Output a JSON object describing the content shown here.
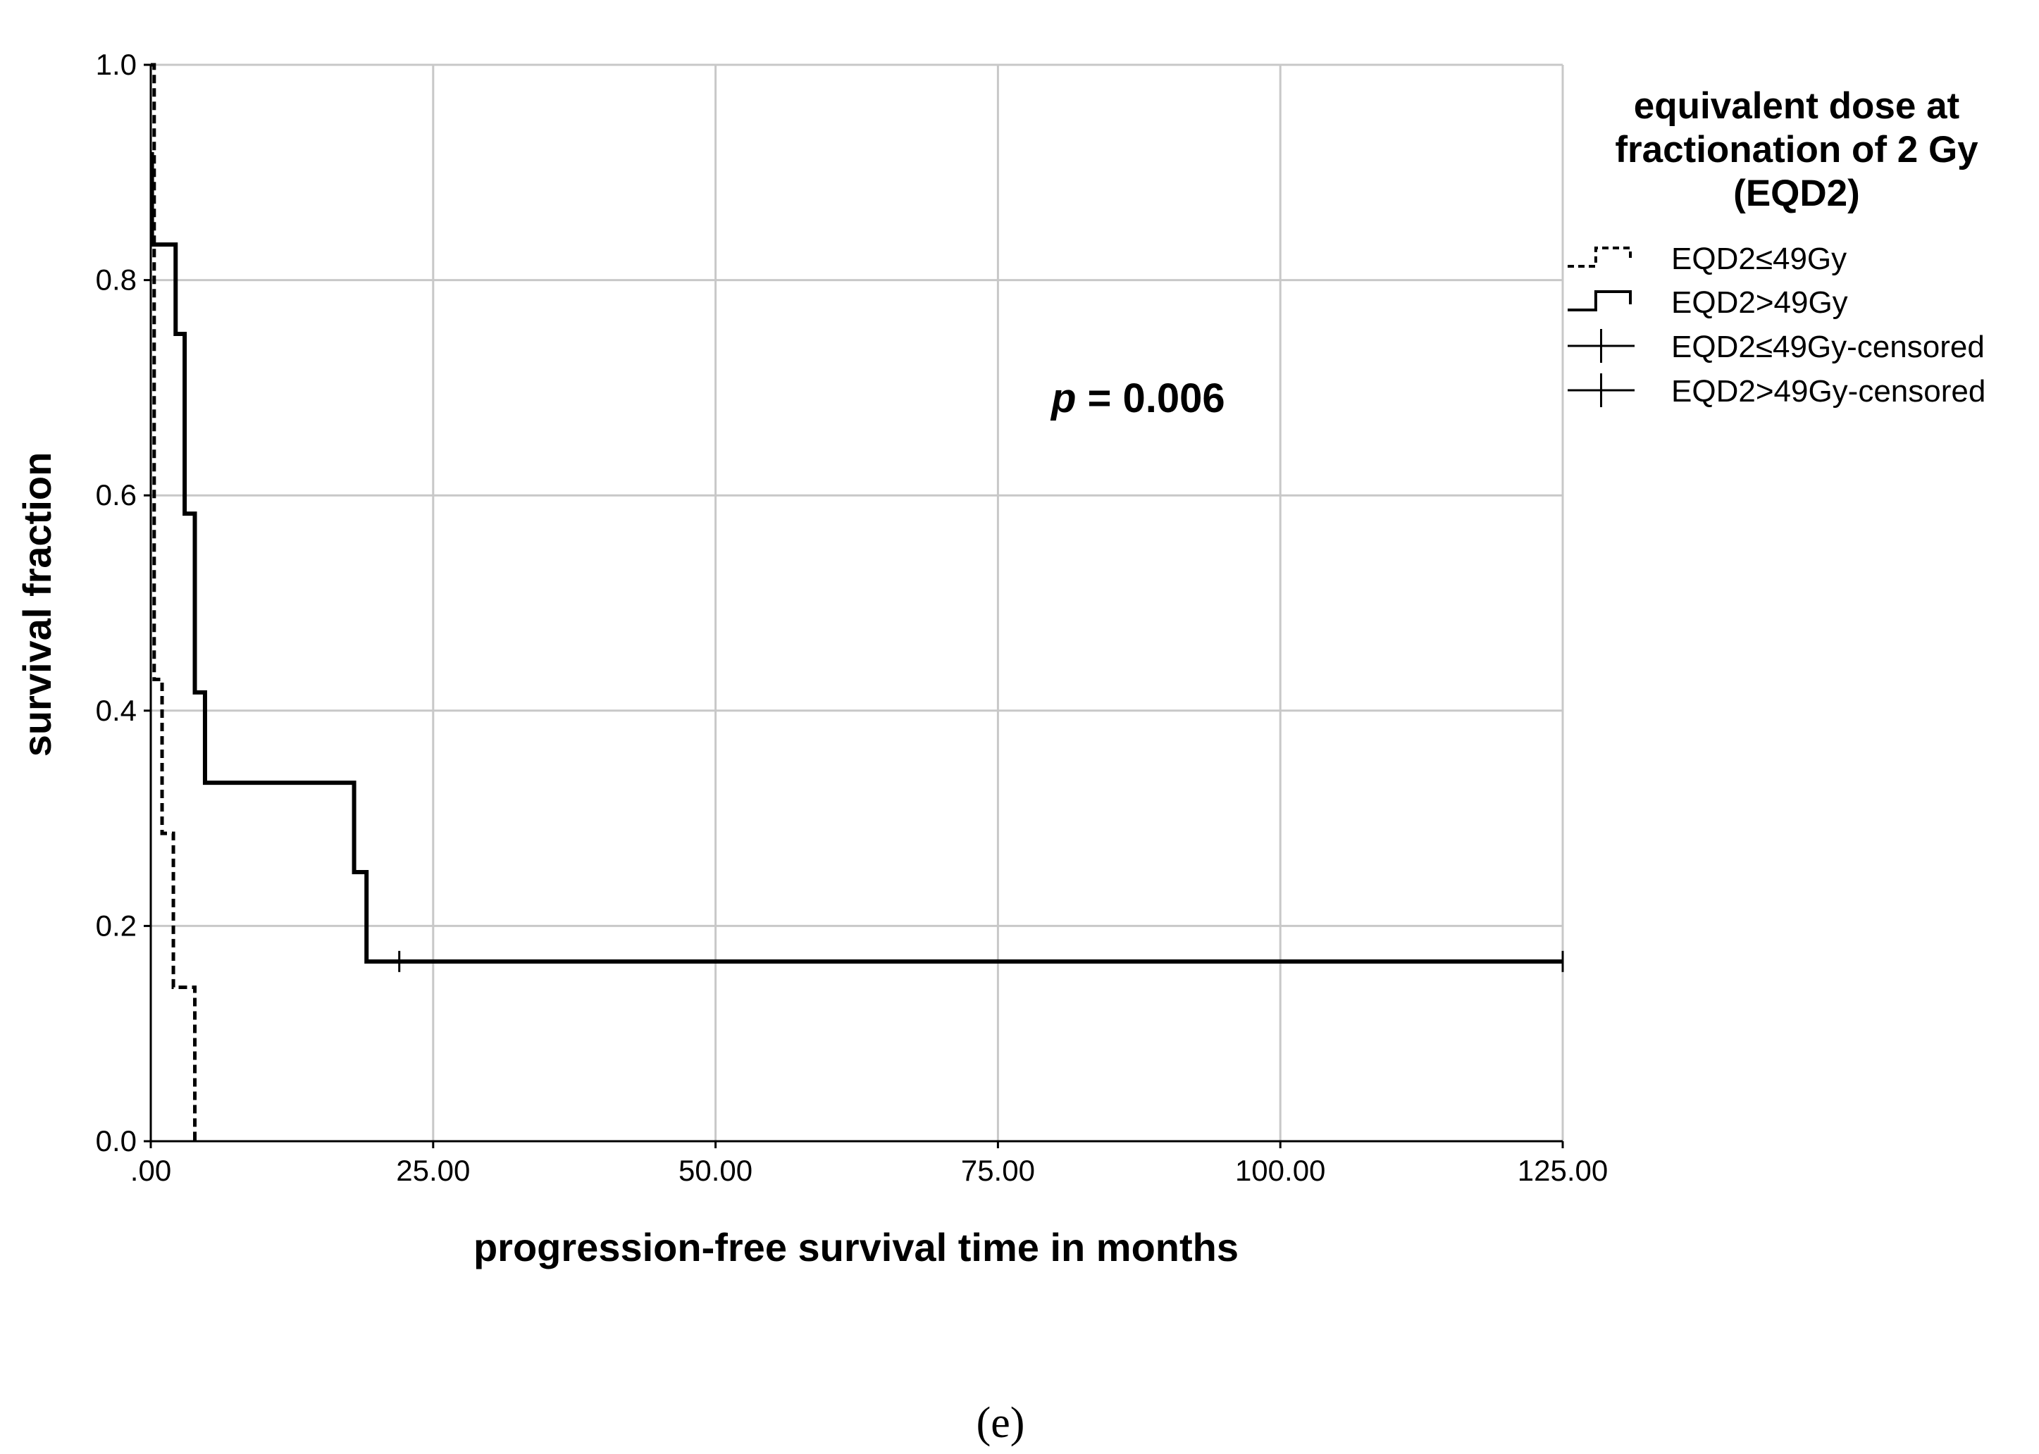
{
  "chart_data": {
    "type": "line",
    "subtype": "kaplan-meier step curve",
    "xlabel": "progression-free survival time in months",
    "ylabel": "survival fraction",
    "xlim": [
      0,
      125
    ],
    "ylim": [
      0,
      1
    ],
    "x_ticks": [
      0,
      25,
      50,
      75,
      100,
      125
    ],
    "x_tick_labels": [
      ".00",
      "25.00",
      "50.00",
      "75.00",
      "100.00",
      "125.00"
    ],
    "y_ticks": [
      0,
      0.2,
      0.4,
      0.6,
      0.8,
      1.0
    ],
    "y_tick_labels": [
      "0.0",
      "0.2",
      "0.4",
      "0.6",
      "0.8",
      "1.0"
    ],
    "grid": true,
    "legend": {
      "title_lines": [
        "equivalent dose at",
        "fractionation of 2 Gy",
        "(EQD2)"
      ],
      "placement": "right",
      "entries": [
        {
          "label": "EQD2≤49Gy",
          "style": "dashed-step"
        },
        {
          "label": "EQD2>49Gy",
          "style": "solid-step"
        },
        {
          "label": "EQD2≤49Gy-censored",
          "style": "cross"
        },
        {
          "label": "EQD2>49Gy-censored",
          "style": "cross"
        }
      ]
    },
    "annotation": {
      "italic": "p",
      "rest": " = 0.006"
    },
    "series": [
      {
        "name": "EQD2≤49Gy",
        "line_style": "dashed",
        "steps": [
          {
            "x": 0,
            "y": 1.0
          },
          {
            "x": 0.3,
            "y": 0.429
          },
          {
            "x": 1.0,
            "y": 0.286
          },
          {
            "x": 2.0,
            "y": 0.143
          },
          {
            "x": 3.9,
            "y": 0.0
          }
        ],
        "end_x": 3.9,
        "censored": []
      },
      {
        "name": "EQD2>49Gy",
        "line_style": "solid",
        "steps": [
          {
            "x": 0,
            "y": 0.917
          },
          {
            "x": 0.1,
            "y": 0.833
          },
          {
            "x": 2.2,
            "y": 0.75
          },
          {
            "x": 3.0,
            "y": 0.583
          },
          {
            "x": 3.9,
            "y": 0.417
          },
          {
            "x": 4.8,
            "y": 0.333
          },
          {
            "x": 18.0,
            "y": 0.25
          },
          {
            "x": 19.1,
            "y": 0.167
          }
        ],
        "end_x": 125,
        "censored": [
          {
            "x": 22.0,
            "y": 0.167
          },
          {
            "x": 125,
            "y": 0.167
          }
        ]
      }
    ]
  },
  "panel_label": "(e)"
}
